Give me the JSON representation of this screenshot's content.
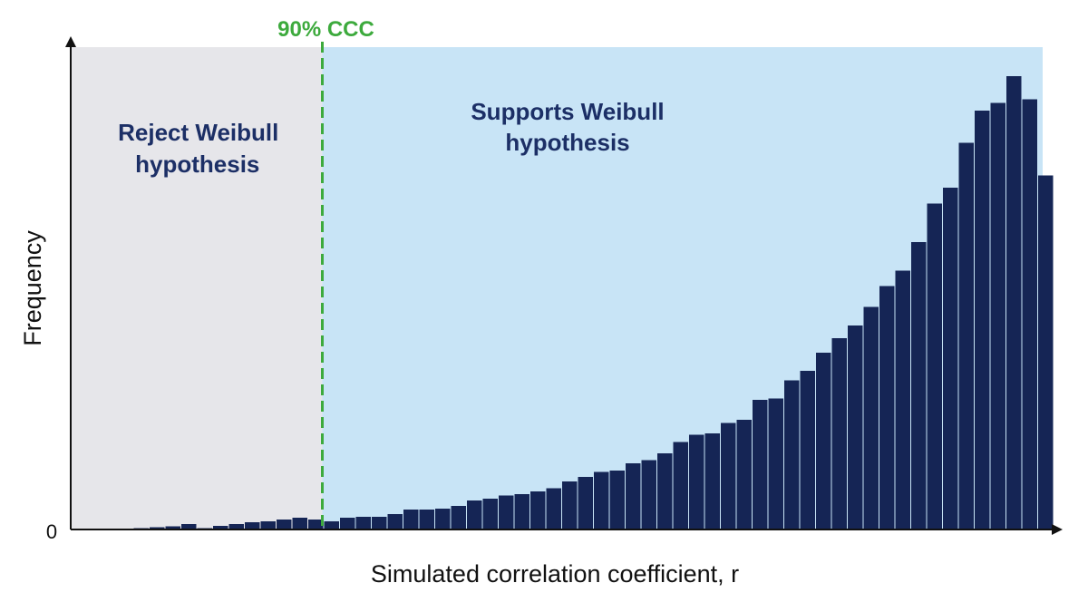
{
  "colors": {
    "reject_region": "#e6e6ea",
    "support_region": "#c8e4f6",
    "bar": "#152555",
    "threshold": "#3daa3d",
    "region_text": "#1c2f66",
    "axis": "#111111"
  },
  "chart_data": {
    "type": "bar",
    "xlabel": "Simulated correlation coefficient, r",
    "ylabel": "Frequency",
    "y_tick_labels": [
      "0"
    ],
    "ylim": [
      0,
      100
    ],
    "threshold": {
      "label": "90% CCC",
      "bin_index": 13,
      "style": "dashed"
    },
    "regions": [
      {
        "label_lines": [
          "Reject Weibull",
          "hypothesis"
        ]
      },
      {
        "label_lines": [
          "Supports Weibull",
          "hypothesis"
        ]
      }
    ],
    "series": [
      {
        "values": [
          0.2,
          0.3,
          0.5,
          0.7,
          1.2,
          0.3,
          0.8,
          1.2,
          1.6,
          1.8,
          2.2,
          2.6,
          2.2,
          1.8,
          2.6,
          2.8,
          2.8,
          3.4,
          4.4,
          4.4,
          4.6,
          5.2,
          6.4,
          6.8,
          7.5,
          7.8,
          8.4,
          9.1,
          10.6,
          11.6,
          12.7,
          13.0,
          14.6,
          15.3,
          16.8,
          19.3,
          20.9,
          21.2,
          23.5,
          24.2,
          28.6,
          28.9,
          32.9,
          35.0,
          39.0,
          42.2,
          45.0,
          49.1,
          53.7,
          57.1,
          63.4,
          71.9,
          75.4,
          85.3,
          92.4,
          94.1,
          100.0,
          94.9,
          78.1
        ]
      }
    ]
  }
}
